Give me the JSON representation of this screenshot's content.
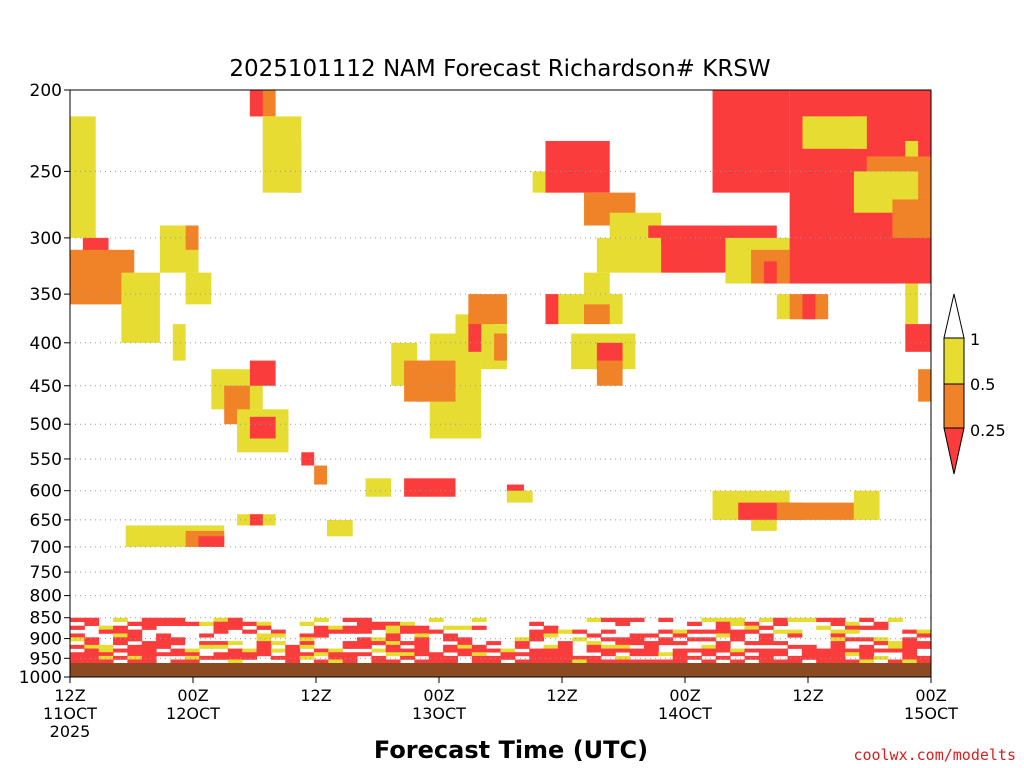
{
  "chart_data": {
    "type": "heatmap",
    "title": "2025101112 NAM Forecast Richardson# KRSW",
    "xlabel": "Forecast Time (UTC)",
    "ylabel": "",
    "y_scale": "log",
    "ylim": [
      1000,
      200
    ],
    "yticks": [
      200,
      250,
      300,
      350,
      400,
      450,
      500,
      550,
      600,
      650,
      700,
      750,
      800,
      850,
      900,
      950,
      1000
    ],
    "xlim": [
      "2025-10-11T12:00Z",
      "2025-10-15T00:00Z"
    ],
    "xticks": [
      {
        "value": "2025-10-11T12:00Z",
        "lines": [
          "12Z",
          "11OCT",
          "2025"
        ]
      },
      {
        "value": "2025-10-12T00:00Z",
        "lines": [
          "00Z",
          "12OCT"
        ]
      },
      {
        "value": "2025-10-12T12:00Z",
        "lines": [
          "12Z"
        ]
      },
      {
        "value": "2025-10-13T00:00Z",
        "lines": [
          "00Z",
          "13OCT"
        ]
      },
      {
        "value": "2025-10-13T12:00Z",
        "lines": [
          "12Z"
        ]
      },
      {
        "value": "2025-10-14T00:00Z",
        "lines": [
          "00Z",
          "14OCT"
        ]
      },
      {
        "value": "2025-10-14T12:00Z",
        "lines": [
          "12Z"
        ]
      },
      {
        "value": "2025-10-15T00:00Z",
        "lines": [
          "00Z",
          "15OCT"
        ]
      }
    ],
    "grid": "dotted horizontal lines at y ticks",
    "legend": {
      "position": "right",
      "type": "colorbar",
      "labels": [
        "1",
        "0.5",
        "0.25"
      ],
      "bins": [
        {
          "range": "> 1",
          "color": "#ffffff"
        },
        {
          "range": "0.5 - 1",
          "color": "#e6dc32"
        },
        {
          "range": "0.25 - 0.5",
          "color": "#f08228"
        },
        {
          "range": "< 0.25",
          "color": "#fa3c3c"
        }
      ]
    },
    "surface_color": "#8c4a22",
    "colors": {
      "light": "#e6dc32",
      "medium": "#f08228",
      "strong": "#fa3c3c"
    },
    "regions": [
      {
        "t": [
          0,
          6
        ],
        "p": [
          215,
          300
        ],
        "level": "light"
      },
      {
        "t": [
          3,
          9
        ],
        "p": [
          300,
          330
        ],
        "level": "strong"
      },
      {
        "t": [
          0,
          15
        ],
        "p": [
          310,
          360
        ],
        "level": "medium"
      },
      {
        "t": [
          12,
          21
        ],
        "p": [
          330,
          400
        ],
        "level": "light"
      },
      {
        "t": [
          21,
          30
        ],
        "p": [
          290,
          330
        ],
        "level": "light"
      },
      {
        "t": [
          27,
          30
        ],
        "p": [
          290,
          310
        ],
        "level": "medium"
      },
      {
        "t": [
          27,
          33
        ],
        "p": [
          330,
          360
        ],
        "level": "light"
      },
      {
        "t": [
          24,
          27
        ],
        "p": [
          380,
          420
        ],
        "level": "light"
      },
      {
        "t": [
          42,
          48
        ],
        "p": [
          200,
          215
        ],
        "level": "medium"
      },
      {
        "t": [
          42,
          45
        ],
        "p": [
          200,
          215
        ],
        "level": "strong"
      },
      {
        "t": [
          51,
          54
        ],
        "p": [
          230,
          265
        ],
        "level": "medium"
      },
      {
        "t": [
          45,
          54
        ],
        "p": [
          215,
          265
        ],
        "level": "light"
      },
      {
        "t": [
          33,
          45
        ],
        "p": [
          430,
          480
        ],
        "level": "light"
      },
      {
        "t": [
          36,
          42
        ],
        "p": [
          450,
          500
        ],
        "level": "medium"
      },
      {
        "t": [
          42,
          48
        ],
        "p": [
          420,
          450
        ],
        "level": "strong"
      },
      {
        "t": [
          39,
          51
        ],
        "p": [
          480,
          540
        ],
        "level": "light"
      },
      {
        "t": [
          42,
          48
        ],
        "p": [
          490,
          520
        ],
        "level": "strong"
      },
      {
        "t": [
          13,
          36
        ],
        "p": [
          660,
          700
        ],
        "level": "light"
      },
      {
        "t": [
          27,
          36
        ],
        "p": [
          670,
          700
        ],
        "level": "medium"
      },
      {
        "t": [
          30,
          36
        ],
        "p": [
          680,
          700
        ],
        "level": "strong"
      },
      {
        "t": [
          39,
          48
        ],
        "p": [
          640,
          660
        ],
        "level": "light"
      },
      {
        "t": [
          42,
          45
        ],
        "p": [
          640,
          660
        ],
        "level": "strong"
      },
      {
        "t": [
          54,
          57
        ],
        "p": [
          540,
          560
        ],
        "level": "strong"
      },
      {
        "t": [
          57,
          60
        ],
        "p": [
          560,
          590
        ],
        "level": "medium"
      },
      {
        "t": [
          75,
          81
        ],
        "p": [
          400,
          450
        ],
        "level": "light"
      },
      {
        "t": [
          78,
          84
        ],
        "p": [
          420,
          470
        ],
        "level": "medium"
      },
      {
        "t": [
          84,
          96
        ],
        "p": [
          390,
          520
        ],
        "level": "light"
      },
      {
        "t": [
          81,
          90
        ],
        "p": [
          420,
          470
        ],
        "level": "medium"
      },
      {
        "t": [
          90,
          96
        ],
        "p": [
          370,
          420
        ],
        "level": "light"
      },
      {
        "t": [
          93,
          99
        ],
        "p": [
          370,
          410
        ],
        "level": "strong"
      },
      {
        "t": [
          93,
          102
        ],
        "p": [
          350,
          380
        ],
        "level": "medium"
      },
      {
        "t": [
          96,
          102
        ],
        "p": [
          380,
          430
        ],
        "level": "light"
      },
      {
        "t": [
          99,
          102
        ],
        "p": [
          390,
          420
        ],
        "level": "medium"
      },
      {
        "t": [
          60,
          66
        ],
        "p": [
          650,
          680
        ],
        "level": "light"
      },
      {
        "t": [
          69,
          75
        ],
        "p": [
          580,
          610
        ],
        "level": "light"
      },
      {
        "t": [
          78,
          90
        ],
        "p": [
          580,
          610
        ],
        "level": "strong"
      },
      {
        "t": [
          102,
          106
        ],
        "p": [
          590,
          610
        ],
        "level": "strong"
      },
      {
        "t": [
          102,
          108
        ],
        "p": [
          600,
          620
        ],
        "level": "light"
      },
      {
        "t": [
          108,
          114
        ],
        "p": [
          250,
          265
        ],
        "level": "light"
      },
      {
        "t": [
          111,
          126
        ],
        "p": [
          230,
          265
        ],
        "level": "strong"
      },
      {
        "t": [
          120,
          132
        ],
        "p": [
          265,
          290
        ],
        "level": "medium"
      },
      {
        "t": [
          126,
          138
        ],
        "p": [
          280,
          300
        ],
        "level": "light"
      },
      {
        "t": [
          135,
          150
        ],
        "p": [
          290,
          320
        ],
        "level": "strong"
      },
      {
        "t": [
          132,
          150
        ],
        "p": [
          305,
          330
        ],
        "level": "light"
      },
      {
        "t": [
          120,
          126
        ],
        "p": [
          330,
          350
        ],
        "level": "light"
      },
      {
        "t": [
          111,
          129
        ],
        "p": [
          350,
          380
        ],
        "level": "light"
      },
      {
        "t": [
          111,
          114
        ],
        "p": [
          350,
          380
        ],
        "level": "strong"
      },
      {
        "t": [
          120,
          126
        ],
        "p": [
          360,
          380
        ],
        "level": "medium"
      },
      {
        "t": [
          117,
          132
        ],
        "p": [
          390,
          430
        ],
        "level": "light"
      },
      {
        "t": [
          123,
          129
        ],
        "p": [
          400,
          430
        ],
        "level": "strong"
      },
      {
        "t": [
          123,
          129
        ],
        "p": [
          420,
          450
        ],
        "level": "medium"
      },
      {
        "t": [
          123,
          138
        ],
        "p": [
          300,
          330
        ],
        "level": "light"
      },
      {
        "t": [
          138,
          165
        ],
        "p": [
          290,
          330
        ],
        "level": "strong"
      },
      {
        "t": [
          153,
          171
        ],
        "p": [
          300,
          340
        ],
        "level": "light"
      },
      {
        "t": [
          159,
          168
        ],
        "p": [
          310,
          340
        ],
        "level": "medium"
      },
      {
        "t": [
          162,
          165
        ],
        "p": [
          320,
          340
        ],
        "level": "strong"
      },
      {
        "t": [
          165,
          171
        ],
        "p": [
          350,
          375
        ],
        "level": "light"
      },
      {
        "t": [
          168,
          177
        ],
        "p": [
          350,
          375
        ],
        "level": "medium"
      },
      {
        "t": [
          171,
          174
        ],
        "p": [
          350,
          375
        ],
        "level": "strong"
      },
      {
        "t": [
          150,
          168
        ],
        "p": [
          200,
          265
        ],
        "level": "strong"
      },
      {
        "t": [
          168,
          201
        ],
        "p": [
          200,
          340
        ],
        "level": "strong"
      },
      {
        "t": [
          171,
          186
        ],
        "p": [
          215,
          235
        ],
        "level": "light"
      },
      {
        "t": [
          186,
          201
        ],
        "p": [
          240,
          270
        ],
        "level": "medium"
      },
      {
        "t": [
          183,
          198
        ],
        "p": [
          250,
          280
        ],
        "level": "light"
      },
      {
        "t": [
          192,
          201
        ],
        "p": [
          270,
          300
        ],
        "level": "medium"
      },
      {
        "t": [
          183,
          186
        ],
        "p": [
          215,
          235
        ],
        "level": "light"
      },
      {
        "t": [
          195,
          198
        ],
        "p": [
          230,
          240
        ],
        "level": "light"
      },
      {
        "t": [
          150,
          168
        ],
        "p": [
          600,
          650
        ],
        "level": "light"
      },
      {
        "t": [
          156,
          171
        ],
        "p": [
          620,
          650
        ],
        "level": "strong"
      },
      {
        "t": [
          165,
          183
        ],
        "p": [
          620,
          650
        ],
        "level": "medium"
      },
      {
        "t": [
          183,
          189
        ],
        "p": [
          600,
          650
        ],
        "level": "light"
      },
      {
        "t": [
          159,
          165
        ],
        "p": [
          650,
          670
        ],
        "level": "light"
      },
      {
        "t": [
          195,
          198
        ],
        "p": [
          340,
          380
        ],
        "level": "light"
      },
      {
        "t": [
          195,
          201
        ],
        "p": [
          380,
          410
        ],
        "level": "strong"
      },
      {
        "t": [
          198,
          201
        ],
        "p": [
          430,
          470
        ],
        "level": "medium"
      },
      {
        "t": [
          0,
          201
        ],
        "p": [
          850,
          1000
        ],
        "level": "band"
      }
    ]
  },
  "credit": "coolwx.com/modelts"
}
